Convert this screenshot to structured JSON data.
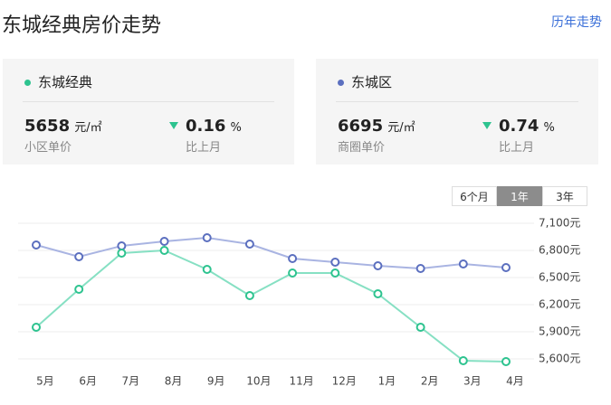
{
  "header": {
    "title": "东城经典房价走势",
    "link": "历年走势"
  },
  "cards": [
    {
      "name": "东城经典",
      "color": "#2dc38f",
      "price": 5658,
      "unit": "元/㎡",
      "price_label": "小区单价",
      "change": 0.16,
      "change_unit": "%",
      "change_label": "比上月"
    },
    {
      "name": "东城区",
      "color": "#5b6fbf",
      "price": 6695,
      "unit": "元/㎡",
      "price_label": "商圈单价",
      "change": 0.74,
      "change_unit": "%",
      "change_label": "比上月"
    }
  ],
  "tabs": {
    "items": [
      "6个月",
      "1年",
      "3年"
    ],
    "active": 1
  },
  "chart_data": {
    "type": "line",
    "categories": [
      "5月",
      "6月",
      "7月",
      "8月",
      "9月",
      "10月",
      "11月",
      "12月",
      "1月",
      "2月",
      "3月",
      "4月"
    ],
    "series": [
      {
        "name": "东城区",
        "color": "#5b6fbf",
        "line_color": "#a9b4e2",
        "values": [
          6860,
          6730,
          6850,
          6900,
          6940,
          6870,
          6710,
          6670,
          6630,
          6600,
          6650,
          6610
        ]
      },
      {
        "name": "东城经典",
        "color": "#2dc38f",
        "line_color": "#86e0c3",
        "values": [
          5950,
          6370,
          6770,
          6800,
          6590,
          6300,
          6550,
          6550,
          6320,
          5950,
          5580,
          5570
        ]
      }
    ],
    "ylim": [
      5500,
      7200
    ],
    "yticks": [
      {
        "value": 7100,
        "label": "7,100元"
      },
      {
        "value": 6800,
        "label": "6,800元"
      },
      {
        "value": 6500,
        "label": "6,500元"
      },
      {
        "value": 6200,
        "label": "6,200元"
      },
      {
        "value": 5900,
        "label": "5,900元"
      },
      {
        "value": 5600,
        "label": "5,600元"
      }
    ],
    "grid": true
  }
}
